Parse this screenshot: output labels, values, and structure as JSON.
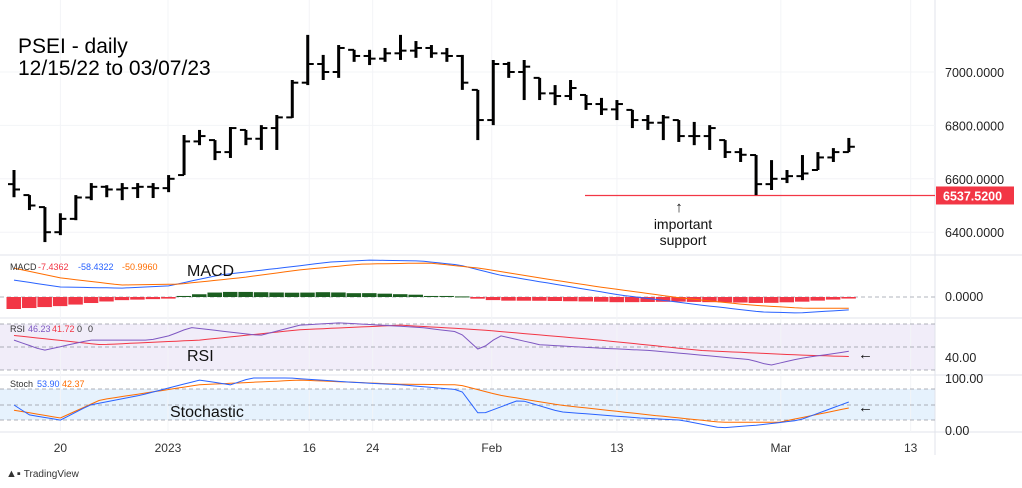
{
  "chart_data": {
    "type": "ohlc",
    "title": "PSEI - daily",
    "subtitle": "12/15/22 to 03/07/23",
    "ohlc_hlc": [
      [
        6633,
        6531,
        6560
      ],
      [
        6539,
        6483,
        6500
      ],
      [
        6494,
        6363,
        6400
      ],
      [
        6471,
        6389,
        6450
      ],
      [
        6539,
        6445,
        6530
      ],
      [
        6584,
        6520,
        6570
      ],
      [
        6576,
        6531,
        6560
      ],
      [
        6584,
        6520,
        6565
      ],
      [
        6584,
        6528,
        6570
      ],
      [
        6584,
        6528,
        6565
      ],
      [
        6614,
        6550,
        6600
      ],
      [
        6764,
        6614,
        6740
      ],
      [
        6783,
        6726,
        6760
      ],
      [
        6745,
        6670,
        6700
      ],
      [
        6794,
        6678,
        6790
      ],
      [
        6783,
        6726,
        6750
      ],
      [
        6801,
        6708,
        6790
      ],
      [
        6839,
        6708,
        6830
      ],
      [
        6970,
        6828,
        6960
      ],
      [
        7139,
        6951,
        7030
      ],
      [
        7064,
        6970,
        7000
      ],
      [
        7101,
        6978,
        7090
      ],
      [
        7083,
        7038,
        7060
      ],
      [
        7083,
        7026,
        7050
      ],
      [
        7090,
        7038,
        7070
      ],
      [
        7139,
        7045,
        7080
      ],
      [
        7116,
        7053,
        7090
      ],
      [
        7101,
        7053,
        7070
      ],
      [
        7090,
        7038,
        7060
      ],
      [
        7064,
        6933,
        6960
      ],
      [
        6933,
        6745,
        6820
      ],
      [
        7045,
        6801,
        7030
      ],
      [
        7038,
        6978,
        7000
      ],
      [
        7045,
        6895,
        7020
      ],
      [
        6978,
        6895,
        6920
      ],
      [
        6951,
        6876,
        6910
      ],
      [
        6970,
        6895,
        6940
      ],
      [
        6914,
        6858,
        6880
      ],
      [
        6903,
        6839,
        6860
      ],
      [
        6895,
        6820,
        6880
      ],
      [
        6858,
        6790,
        6820
      ],
      [
        6839,
        6783,
        6810
      ],
      [
        6839,
        6745,
        6830
      ],
      [
        6820,
        6738,
        6760
      ],
      [
        6813,
        6726,
        6760
      ],
      [
        6801,
        6708,
        6790
      ],
      [
        6745,
        6678,
        6700
      ],
      [
        6715,
        6663,
        6690
      ],
      [
        6689,
        6539,
        6580
      ],
      [
        6670,
        6558,
        6600
      ],
      [
        6633,
        6584,
        6610
      ],
      [
        6689,
        6595,
        6620
      ],
      [
        6700,
        6633,
        6680
      ],
      [
        6715,
        6663,
        6700
      ],
      [
        6753,
        6700,
        6720
      ]
    ],
    "price_ticks": [
      "7000.0000",
      "6800.0000",
      "6600.0000",
      "6400.0000"
    ],
    "price_tick_values": [
      7000,
      6800,
      6600,
      6400
    ],
    "support": {
      "value": 6537.52,
      "label": "6537.5200",
      "annotation_line1": "important",
      "annotation_line2": "support",
      "color": "#f23645"
    },
    "x_ticks": [
      {
        "label": "20",
        "index": 3
      },
      {
        "label": "2023",
        "index": 9.96
      },
      {
        "label": "16",
        "index": 19.1
      },
      {
        "label": "24",
        "index": 23.2
      },
      {
        "label": "Feb",
        "index": 30.9
      },
      {
        "label": "13",
        "index": 39
      },
      {
        "label": "Mar",
        "index": 49.6
      },
      {
        "label": "13",
        "index": 58
      }
    ],
    "macd": {
      "name": "MACD",
      "annotation": "MACD",
      "values_text": [
        "-7.4362",
        "-58.4322",
        "-50.9960"
      ],
      "zero_label": "0.0000",
      "macd_line": [
        [
          0,
          76
        ],
        [
          3,
          45
        ],
        [
          7,
          40
        ],
        [
          10,
          50
        ],
        [
          13.3,
          99
        ],
        [
          17.2,
          130
        ],
        [
          20.4,
          157
        ],
        [
          23,
          166
        ],
        [
          26.3,
          162
        ],
        [
          28.8,
          144
        ],
        [
          31.4,
          99
        ],
        [
          35.3,
          54
        ],
        [
          39.2,
          9
        ],
        [
          44.4,
          -36
        ],
        [
          48.3,
          -67
        ],
        [
          50.8,
          -72
        ],
        [
          54,
          -58
        ]
      ],
      "signal_line": [
        [
          0,
          130
        ],
        [
          3,
          86
        ],
        [
          6.9,
          54
        ],
        [
          10.7,
          58
        ],
        [
          14.6,
          86
        ],
        [
          18.5,
          122
        ],
        [
          22.4,
          148
        ],
        [
          26.9,
          153
        ],
        [
          30.1,
          130
        ],
        [
          34,
          86
        ],
        [
          37.9,
          45
        ],
        [
          43.1,
          -4
        ],
        [
          47.6,
          -36
        ],
        [
          50.8,
          -50
        ],
        [
          54,
          -51
        ]
      ]
    },
    "rsi": {
      "name": "RSI",
      "annotation": "RSI",
      "values_text": [
        "46.23",
        "41.72",
        "0",
        "0"
      ],
      "axis_label": "40.00",
      "rsi_line": [
        [
          0,
          56
        ],
        [
          1.9,
          47
        ],
        [
          4.9,
          56
        ],
        [
          8.8,
          56
        ],
        [
          10.1,
          60
        ],
        [
          11.4,
          67
        ],
        [
          14,
          63
        ],
        [
          15.9,
          60
        ],
        [
          18.5,
          69
        ],
        [
          21.1,
          71
        ],
        [
          23.7,
          69
        ],
        [
          26.3,
          67
        ],
        [
          28.8,
          63
        ],
        [
          30.1,
          47
        ],
        [
          31.4,
          60
        ],
        [
          34,
          52
        ],
        [
          37.9,
          49
        ],
        [
          41.1,
          47
        ],
        [
          44.4,
          43
        ],
        [
          47.6,
          39
        ],
        [
          48.9,
          34
        ],
        [
          50.8,
          40
        ],
        [
          54,
          46.23
        ]
      ],
      "ma_line": [
        [
          0,
          60
        ],
        [
          5.6,
          52
        ],
        [
          12,
          56
        ],
        [
          18.5,
          65
        ],
        [
          25,
          69
        ],
        [
          30.1,
          65
        ],
        [
          37.9,
          56
        ],
        [
          44.4,
          47
        ],
        [
          50.8,
          43
        ],
        [
          54,
          41.72
        ]
      ]
    },
    "stoch": {
      "name": "Stoch",
      "annotation": "Stochastic",
      "values_text": [
        "53.90",
        "42.37"
      ],
      "axis_top": "100.00",
      "axis_bottom": "0.00",
      "k_line": [
        [
          0,
          48
        ],
        [
          1,
          29
        ],
        [
          3,
          19
        ],
        [
          4.9,
          48
        ],
        [
          8.2,
          67
        ],
        [
          12,
          96
        ],
        [
          14,
          87
        ],
        [
          15.3,
          100
        ],
        [
          17.9,
          100
        ],
        [
          21.7,
          92
        ],
        [
          25,
          87
        ],
        [
          28.9,
          77
        ],
        [
          30.1,
          29
        ],
        [
          32.7,
          58
        ],
        [
          35.3,
          35
        ],
        [
          37.9,
          29
        ],
        [
          40.5,
          23
        ],
        [
          43.1,
          19
        ],
        [
          45.7,
          4
        ],
        [
          48.3,
          10
        ],
        [
          50.8,
          19
        ],
        [
          54,
          53.9
        ]
      ],
      "d_line": [
        [
          0,
          38
        ],
        [
          3,
          23
        ],
        [
          5.6,
          58
        ],
        [
          12,
          87
        ],
        [
          18.5,
          96
        ],
        [
          25,
          88
        ],
        [
          28.8,
          87
        ],
        [
          31.4,
          67
        ],
        [
          35.3,
          48
        ],
        [
          41.1,
          29
        ],
        [
          45.7,
          15
        ],
        [
          49.5,
          15
        ],
        [
          54,
          42.37
        ]
      ]
    },
    "colors": {
      "bars": "#000000",
      "macd": "#2962ff",
      "signal": "#ff6d00",
      "hist_pos": "#1b5e20",
      "hist_neg": "#f23645",
      "rsi": "#7e57c2",
      "rsi_ma": "#f23645",
      "stoch_k": "#2962ff",
      "stoch_d": "#ff6d00"
    }
  },
  "brand": "TradingView"
}
